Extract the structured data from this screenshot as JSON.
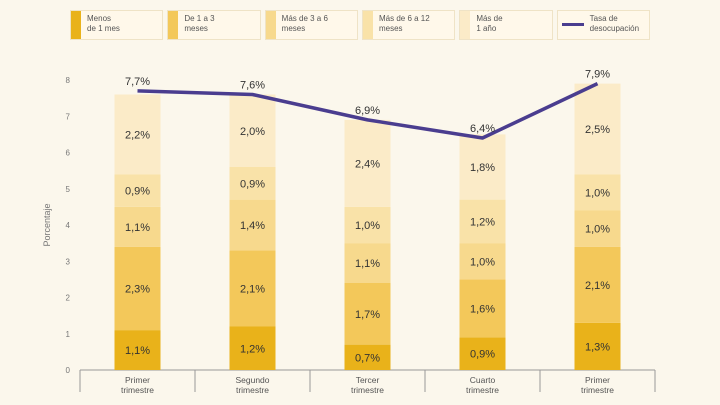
{
  "legend": [
    {
      "label": "Menos\nde 1 mes",
      "color": "#e9b21a"
    },
    {
      "label": "De 1 a 3\nmeses",
      "color": "#f3c85a"
    },
    {
      "label": "Más de 3 a 6\nmeses",
      "color": "#f7d98d"
    },
    {
      "label": "Más de 6 a 12\nmeses",
      "color": "#f9e2a8"
    },
    {
      "label": "Más de\n1 año",
      "color": "#fbebc8"
    },
    {
      "label": "Tasa de\ndesocupación",
      "color": "#4a3d8f",
      "kind": "line"
    }
  ],
  "chart_data": {
    "type": "bar",
    "stacked": true,
    "categories": [
      "Primer\ntrimestre",
      "Segundo\ntrimestre",
      "Tercer\ntrimestre",
      "Cuarto\ntrimestre",
      "Primer\ntrimestre"
    ],
    "ylabel": "Porcentaje",
    "ylim": [
      0,
      8
    ],
    "yticks": [
      0,
      1,
      2,
      3,
      4,
      5,
      6,
      7,
      8
    ],
    "series": [
      {
        "name": "Menos de 1 mes",
        "color": "#e9b21a",
        "values": [
          1.1,
          1.2,
          0.7,
          0.9,
          1.3
        ],
        "labels": [
          "1,1%",
          "1,2%",
          "0,7%",
          "0,9%",
          "1,3%"
        ]
      },
      {
        "name": "De 1 a 3 meses",
        "color": "#f3c85a",
        "values": [
          2.3,
          2.1,
          1.7,
          1.6,
          2.1
        ],
        "labels": [
          "2,3%",
          "2,1%",
          "1,7%",
          "1,6%",
          "2,1%"
        ]
      },
      {
        "name": "Más de 3 a 6 meses",
        "color": "#f7d98d",
        "values": [
          1.1,
          1.4,
          1.1,
          1.0,
          1.0
        ],
        "labels": [
          "1,1%",
          "1,4%",
          "1,1%",
          "1,0%",
          "1,0%"
        ]
      },
      {
        "name": "Más de 6 a 12 meses",
        "color": "#f9e2a8",
        "values": [
          0.9,
          0.9,
          1.0,
          1.2,
          1.0
        ],
        "labels": [
          "0,9%",
          "0,9%",
          "1,0%",
          "1,2%",
          "1,0%"
        ]
      },
      {
        "name": "Más de 1 año",
        "color": "#fbebc8",
        "values": [
          2.2,
          2.0,
          2.4,
          1.8,
          2.5
        ],
        "labels": [
          "2,2%",
          "2,0%",
          "2,4%",
          "1,8%",
          "2,5%"
        ]
      }
    ],
    "line": {
      "name": "Tasa de desocupación",
      "color": "#4a3d8f",
      "values": [
        7.7,
        7.6,
        6.9,
        6.4,
        7.9
      ],
      "labels": [
        "7,7%",
        "7,6%",
        "6,9%",
        "6,4%",
        "7,9%"
      ]
    },
    "legend_position": "top",
    "grid": false
  }
}
